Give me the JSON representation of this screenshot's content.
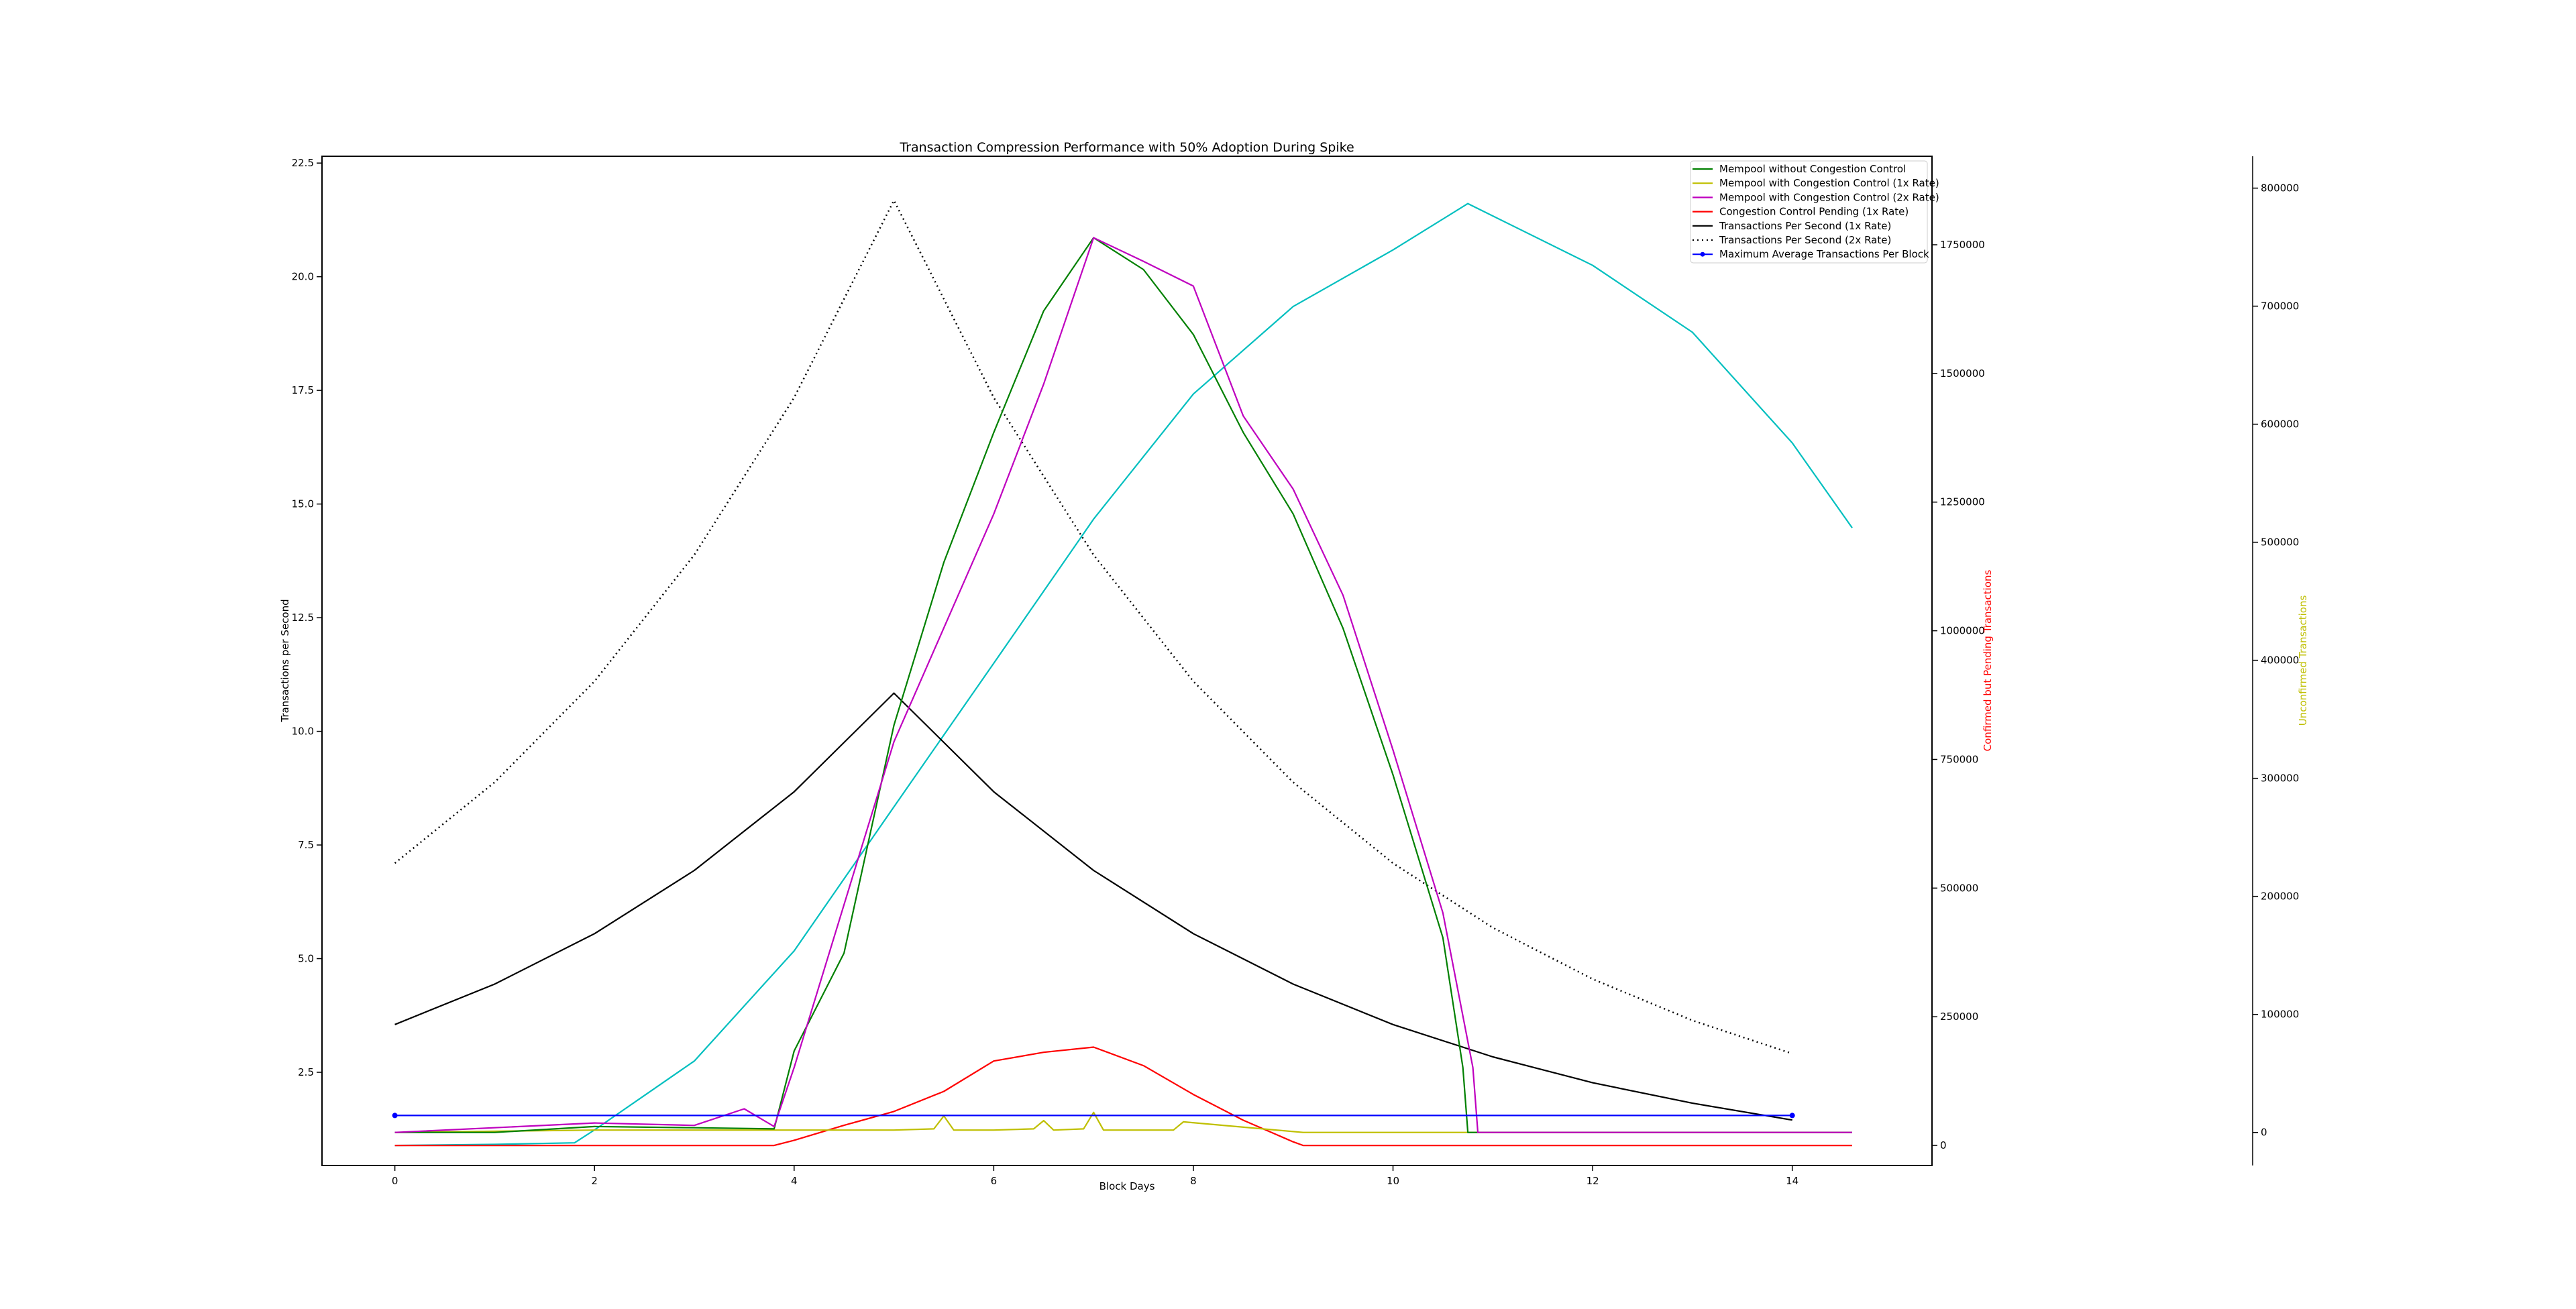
{
  "chart_data": {
    "type": "line",
    "title": "Transaction Compression Performance with 50% Adoption During Spike",
    "xlabel": "Block Days",
    "xlim": [
      -0.73,
      15.4
    ],
    "xticks": [
      0,
      2,
      4,
      6,
      8,
      10,
      12,
      14
    ],
    "axes": {
      "left": {
        "label": "Transactions per Second",
        "ylim": [
          0.45,
          22.65
        ],
        "ticks": [
          "2.5",
          "5.0",
          "7.5",
          "10.0",
          "12.5",
          "15.0",
          "17.5",
          "20.0",
          "22.5"
        ],
        "color": "#000000"
      },
      "pending": {
        "label": "Confirmed but Pending Transactions",
        "ylim": [
          -39000,
          1922000
        ],
        "ticks": [
          "0",
          "250000",
          "500000",
          "750000",
          "1000000",
          "1250000",
          "1500000",
          "1750000"
        ],
        "color": "#ff0000"
      },
      "unconfirmed": {
        "label": "Unconfirmed Transactions",
        "ylim": [
          -28000,
          827000
        ],
        "ticks": [
          "0",
          "100000",
          "200000",
          "300000",
          "400000",
          "500000",
          "600000",
          "700000",
          "800000"
        ],
        "color": "#bfbf00"
      }
    },
    "legend_placement": "top-right",
    "grid": false,
    "series": [
      {
        "name": "Mempool without Congestion Control",
        "axis": "unconfirmed",
        "color": "#008000",
        "style": "solid",
        "x": [
          0,
          1,
          2,
          3,
          3.8,
          4,
          4.5,
          5,
          5.5,
          6,
          6.5,
          7,
          7.5,
          8,
          8.5,
          9,
          9.5,
          10,
          10.5,
          10.7,
          10.75,
          12,
          14.6
        ],
        "y": [
          0,
          0,
          5000,
          4000,
          3000,
          69000,
          152000,
          345000,
          483000,
          593000,
          696000,
          758000,
          731000,
          676000,
          593000,
          524000,
          427000,
          303000,
          165000,
          55000,
          0,
          0,
          0
        ]
      },
      {
        "name": "Mempool with Congestion Control (1x Rate)",
        "axis": "unconfirmed",
        "color": "#bfbf00",
        "style": "solid",
        "x": [
          0,
          2,
          4,
          5,
          5.4,
          5.5,
          5.6,
          6,
          6.4,
          6.5,
          6.6,
          6.9,
          7,
          7.1,
          7.8,
          7.9,
          9.1,
          14.6
        ],
        "y": [
          0,
          2000,
          2000,
          2000,
          3000,
          14000,
          2000,
          2000,
          3000,
          10000,
          2000,
          3000,
          17000,
          2000,
          2000,
          9000,
          0,
          0
        ]
      },
      {
        "name": "Mempool with Congestion Control (2x Rate)",
        "axis": "unconfirmed",
        "color": "#bf00bf",
        "style": "solid",
        "x": [
          0,
          2,
          3,
          3.5,
          3.8,
          4,
          5,
          6,
          6.5,
          7,
          7.5,
          8,
          8.5,
          9,
          9.5,
          10,
          10.5,
          10.8,
          10.85,
          12.4,
          14.6
        ],
        "y": [
          0,
          8000,
          6000,
          20000,
          5000,
          55000,
          331000,
          524000,
          634000,
          758000,
          738000,
          717000,
          607000,
          545000,
          455000,
          324000,
          186000,
          55000,
          0,
          0,
          0
        ]
      },
      {
        "name": "Congestion Control Pending (1x Rate)",
        "axis": "pending",
        "color": "#ff0000",
        "style": "solid",
        "x": [
          0,
          3.8,
          4,
          4.5,
          5,
          5.5,
          6,
          6.5,
          7,
          7.5,
          8,
          8.5,
          9,
          9.1,
          14.6
        ],
        "y": [
          0,
          0,
          10000,
          39000,
          66000,
          105000,
          164000,
          181000,
          191000,
          155000,
          99000,
          49000,
          7000,
          0,
          0
        ]
      },
      {
        "name": "Transactions Per Second (1x Rate)",
        "axis": "left",
        "color": "#000000",
        "style": "solid",
        "x": [
          0,
          1,
          2,
          3,
          4,
          5,
          6,
          7,
          8,
          9,
          10,
          11,
          12,
          13,
          14
        ],
        "y": [
          3.55,
          4.44,
          5.55,
          6.94,
          8.67,
          10.84,
          8.67,
          6.94,
          5.55,
          4.44,
          3.55,
          2.84,
          2.27,
          1.82,
          1.45
        ]
      },
      {
        "name": "Transactions Per Second (2x Rate)",
        "axis": "left",
        "color": "#000000",
        "style": "dotted",
        "x": [
          0,
          1,
          2,
          3,
          4,
          5,
          6,
          7,
          8,
          9,
          10,
          11,
          12,
          13,
          14
        ],
        "y": [
          7.1,
          8.88,
          11.1,
          13.88,
          17.34,
          21.68,
          17.34,
          13.88,
          11.1,
          8.88,
          7.1,
          5.68,
          4.55,
          3.64,
          2.91
        ]
      },
      {
        "name": "Maximum Average Transactions Per Block",
        "axis": "left",
        "color": "#0000ff",
        "style": "solid-marker",
        "x": [
          0,
          14
        ],
        "y": [
          1.55,
          1.55
        ]
      },
      {
        "axis": "pending",
        "color": "#00bfbf",
        "style": "solid",
        "x": [
          0,
          1,
          1.8,
          2,
          3,
          4,
          5,
          6,
          7,
          8,
          9,
          10,
          10.75,
          12,
          13,
          14,
          14.6
        ],
        "y": [
          0,
          2000,
          5000,
          30000,
          164000,
          378000,
          658000,
          937000,
          1217000,
          1460000,
          1630000,
          1740000,
          1830000,
          1710000,
          1580000,
          1365000,
          1200000
        ]
      }
    ]
  }
}
